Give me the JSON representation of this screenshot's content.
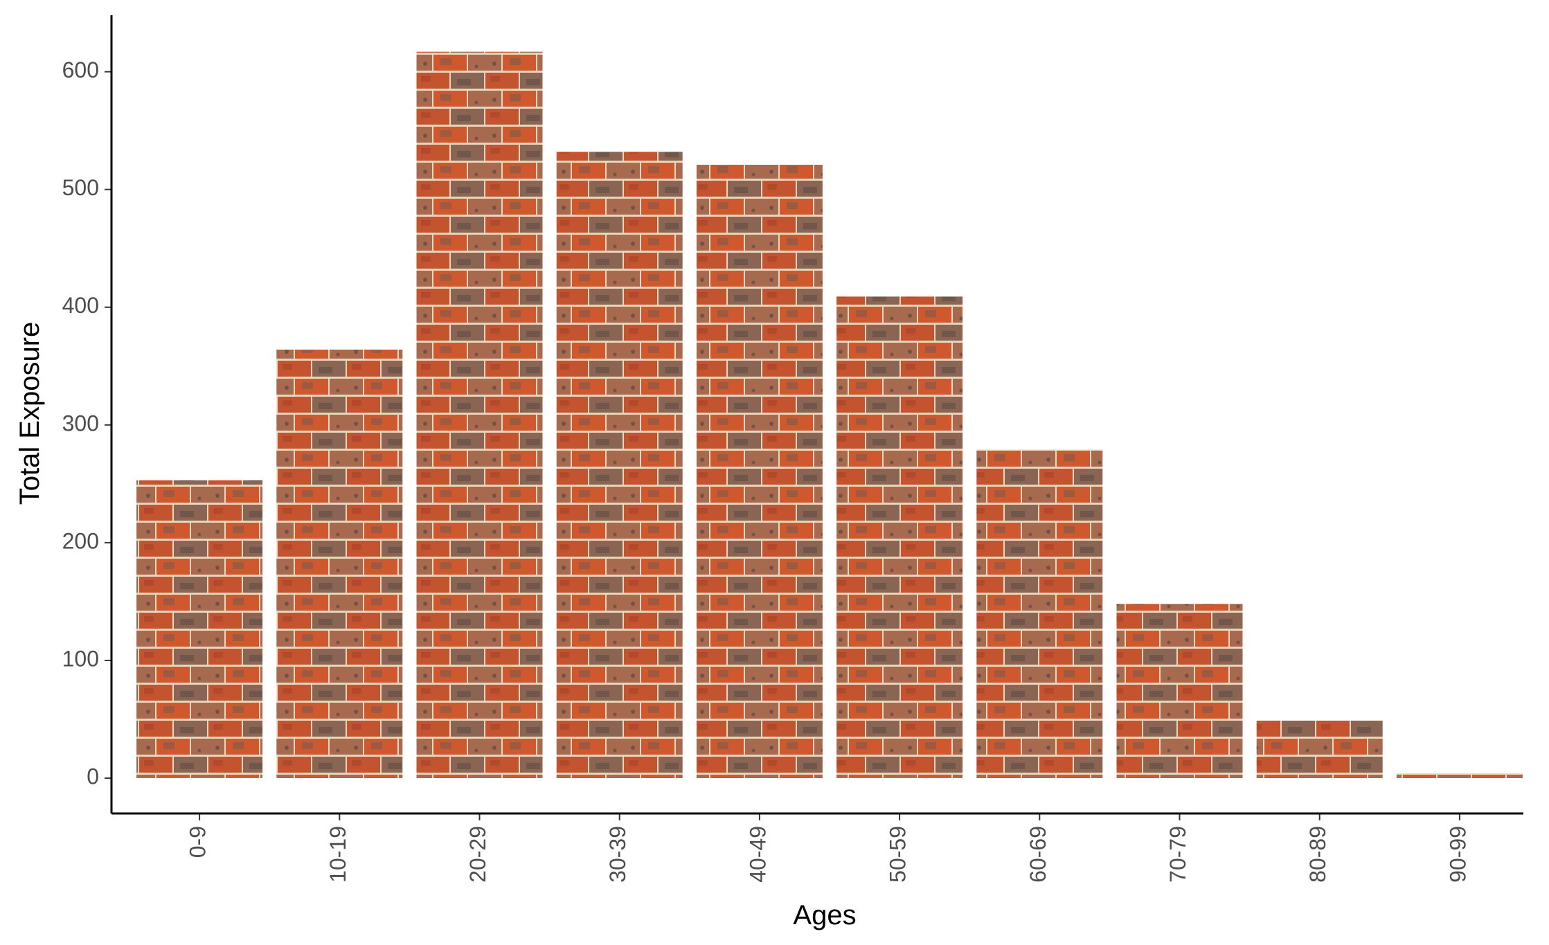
{
  "chart_data": {
    "type": "bar",
    "title": "",
    "xlabel": "Ages",
    "ylabel": "Total Exposure",
    "categories": [
      "0-9",
      "10-19",
      "20-29",
      "30-39",
      "40-49",
      "50-59",
      "60-69",
      "70-79",
      "80-89",
      "90-99"
    ],
    "values": [
      253,
      364,
      617,
      532,
      521,
      409,
      279,
      148,
      49,
      4
    ],
    "ylim": [
      -30,
      648
    ],
    "yticks": [
      0,
      100,
      200,
      300,
      400,
      500,
      600
    ],
    "grid": false,
    "legend": "none",
    "x_tick_rotation": -90,
    "bar_fill": "brick texture",
    "colors": {
      "brick_red": "#c4532f",
      "brick_dark": "#6b5a52",
      "brick_brown": "#a86a4f",
      "mortar": "#e8d6bd",
      "axis": "#000000",
      "tick_text": "#4d4d4d"
    }
  }
}
